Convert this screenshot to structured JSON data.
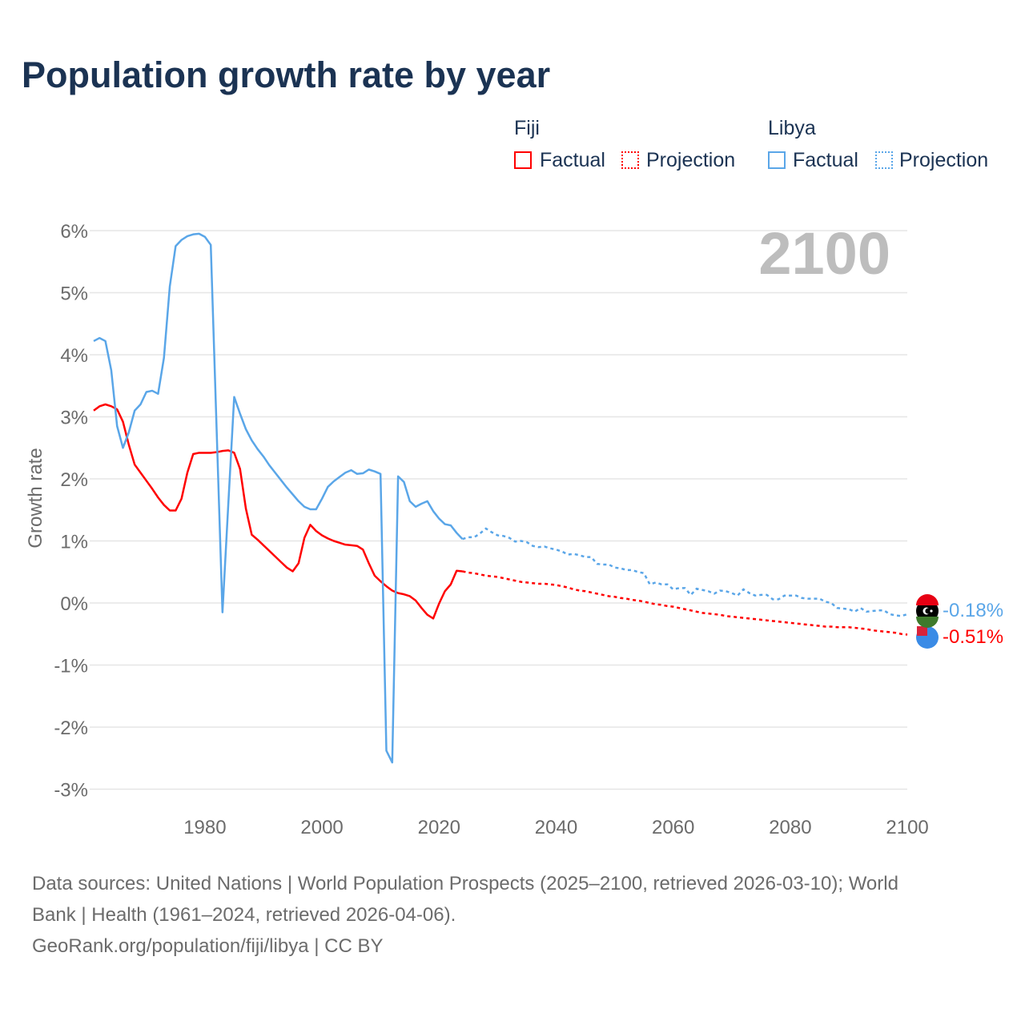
{
  "title": "Population growth rate by year",
  "legend": {
    "fiji": "Fiji",
    "libya": "Libya",
    "factual": "Factual",
    "projection": "Projection"
  },
  "colors": {
    "fiji": "#ff0000",
    "libya": "#5aa6e8"
  },
  "footer": {
    "line1": "Data sources: United Nations | World Population Prospects (2025–2100, retrieved 2026-03-10); World",
    "line2": "Bank | Health (1961–2024, retrieved 2026-04-06).",
    "line3": "GeoRank.org/population/fiji/libya | CC BY"
  },
  "chart_data": {
    "type": "line",
    "title": "Population growth rate by year",
    "ylabel": "Growth rate",
    "xlim": [
      1961,
      2100
    ],
    "ylim": [
      -3.4,
      6.2
    ],
    "xticks": [
      1980,
      2000,
      2020,
      2040,
      2060,
      2080,
      2100
    ],
    "xtick_labels": [
      "1980",
      "2000",
      "2020",
      "2040",
      "2060",
      "2080",
      "2100"
    ],
    "yticks": [
      -3,
      -2,
      -1,
      0,
      1,
      2,
      3,
      4,
      5,
      6
    ],
    "ytick_labels": [
      "-3%",
      "-2%",
      "-1%",
      "0%",
      "1%",
      "2%",
      "3%",
      "4%",
      "5%",
      "6%"
    ],
    "year_label": "2100",
    "factual_start": 1961,
    "projection_start": 2025,
    "series": [
      {
        "name": "Fiji",
        "end_label": "-0.51%",
        "factual": [
          3.1,
          3.17,
          3.2,
          3.17,
          3.12,
          2.92,
          2.55,
          2.23,
          2.1,
          1.97,
          1.84,
          1.7,
          1.58,
          1.49,
          1.49,
          1.68,
          2.1,
          2.4,
          2.42,
          2.42,
          2.42,
          2.43,
          2.45,
          2.46,
          2.42,
          2.16,
          1.52,
          1.1,
          1.02,
          0.93,
          0.84,
          0.75,
          0.66,
          0.57,
          0.51,
          0.64,
          1.05,
          1.26,
          1.16,
          1.09,
          1.04,
          1.0,
          0.97,
          0.94,
          0.93,
          0.92,
          0.86,
          0.64,
          0.44,
          0.35,
          0.27,
          0.2,
          0.16,
          0.14,
          0.11,
          0.04,
          -0.08,
          -0.19,
          -0.25,
          -0.01,
          0.19,
          0.3,
          0.52,
          0.51
        ],
        "projection": [
          0.49,
          0.48,
          0.46,
          0.44,
          0.43,
          0.42,
          0.4,
          0.38,
          0.36,
          0.34,
          0.33,
          0.32,
          0.31,
          0.31,
          0.3,
          0.29,
          0.27,
          0.25,
          0.22,
          0.2,
          0.19,
          0.17,
          0.15,
          0.13,
          0.11,
          0.1,
          0.08,
          0.07,
          0.05,
          0.04,
          0.02,
          0.0,
          -0.02,
          -0.03,
          -0.05,
          -0.06,
          -0.08,
          -0.1,
          -0.12,
          -0.14,
          -0.16,
          -0.17,
          -0.18,
          -0.19,
          -0.21,
          -0.22,
          -0.23,
          -0.24,
          -0.25,
          -0.26,
          -0.27,
          -0.28,
          -0.29,
          -0.3,
          -0.31,
          -0.32,
          -0.33,
          -0.34,
          -0.35,
          -0.36,
          -0.37,
          -0.38,
          -0.38,
          -0.39,
          -0.39,
          -0.39,
          -0.4,
          -0.41,
          -0.42,
          -0.44,
          -0.45,
          -0.46,
          -0.47,
          -0.48,
          -0.5,
          -0.51
        ]
      },
      {
        "name": "Libya",
        "end_label": "-0.18%",
        "factual": [
          4.22,
          4.27,
          4.22,
          3.75,
          2.85,
          2.5,
          2.75,
          3.1,
          3.2,
          3.4,
          3.42,
          3.37,
          3.95,
          5.1,
          5.75,
          5.85,
          5.91,
          5.94,
          5.95,
          5.9,
          5.77,
          2.8,
          -0.15,
          1.6,
          3.32,
          3.05,
          2.8,
          2.62,
          2.48,
          2.36,
          2.22,
          2.1,
          1.98,
          1.86,
          1.75,
          1.64,
          1.55,
          1.51,
          1.51,
          1.68,
          1.87,
          1.96,
          2.03,
          2.1,
          2.14,
          2.08,
          2.09,
          2.15,
          2.12,
          2.08,
          -2.38,
          -2.57,
          2.04,
          1.95,
          1.64,
          1.55,
          1.6,
          1.64,
          1.48,
          1.36,
          1.27,
          1.25,
          1.13,
          1.03
        ],
        "projection": [
          1.06,
          1.06,
          1.12,
          1.2,
          1.14,
          1.09,
          1.08,
          1.05,
          0.99,
          1.0,
          0.98,
          0.92,
          0.9,
          0.91,
          0.88,
          0.86,
          0.83,
          0.78,
          0.79,
          0.77,
          0.74,
          0.74,
          0.63,
          0.62,
          0.62,
          0.57,
          0.56,
          0.53,
          0.53,
          0.5,
          0.48,
          0.3,
          0.33,
          0.3,
          0.3,
          0.22,
          0.24,
          0.24,
          0.13,
          0.23,
          0.21,
          0.19,
          0.15,
          0.2,
          0.19,
          0.16,
          0.12,
          0.22,
          0.16,
          0.12,
          0.13,
          0.13,
          0.06,
          0.06,
          0.12,
          0.12,
          0.12,
          0.08,
          0.07,
          0.07,
          0.07,
          0.02,
          0.0,
          -0.08,
          -0.09,
          -0.1,
          -0.14,
          -0.08,
          -0.14,
          -0.13,
          -0.12,
          -0.12,
          -0.18,
          -0.2,
          -0.21,
          -0.18
        ]
      }
    ]
  }
}
